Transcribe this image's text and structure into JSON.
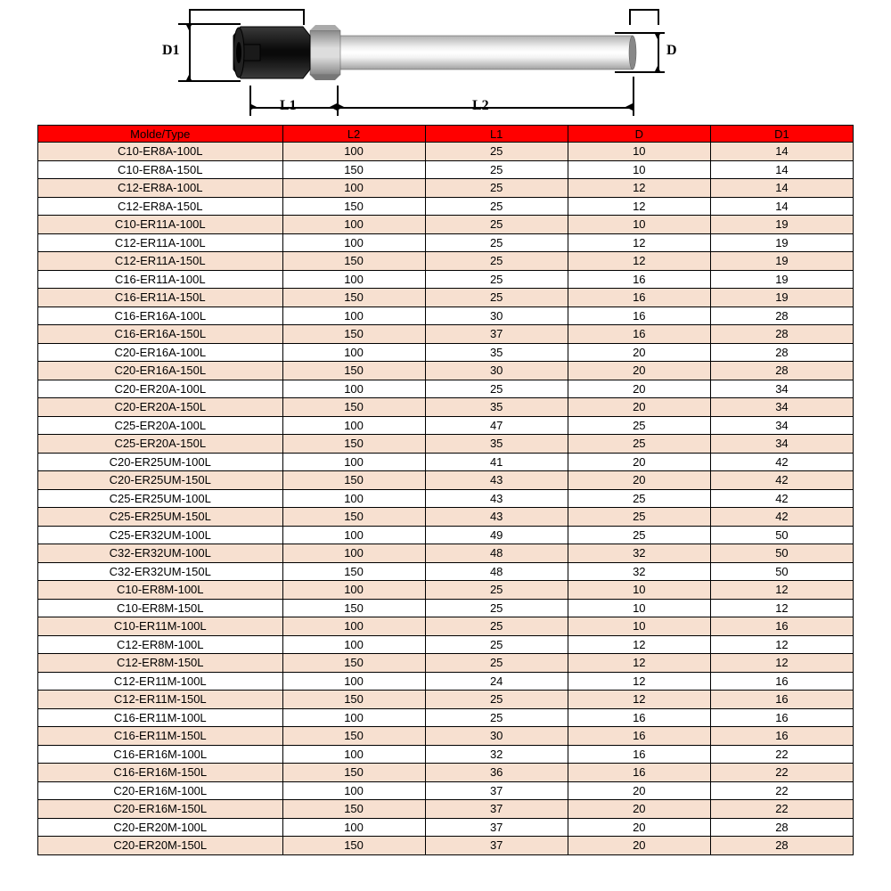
{
  "diagram": {
    "labels": {
      "d1": "D1",
      "d": "D",
      "l1": "L1",
      "l2": "L2"
    },
    "colors": {
      "nut": "#1a1a1a",
      "collar": "#c8c8c8",
      "shaft_light": "#e8e8e8",
      "shaft_dark": "#b0b0b0",
      "line": "#000000"
    }
  },
  "table": {
    "header_bg": "#ff0000",
    "row_alt_bg": "#f7e0d0",
    "row_bg": "#ffffff",
    "border": "#000000",
    "columns": [
      "Molde/Type",
      "L2",
      "L1",
      "D",
      "D1"
    ],
    "col_widths_pct": [
      30,
      17.5,
      17.5,
      17.5,
      17.5
    ],
    "font_size": 13,
    "rows": [
      [
        "C10-ER8A-100L",
        "100",
        "25",
        "10",
        "14"
      ],
      [
        "C10-ER8A-150L",
        "150",
        "25",
        "10",
        "14"
      ],
      [
        "C12-ER8A-100L",
        "100",
        "25",
        "12",
        "14"
      ],
      [
        "C12-ER8A-150L",
        "150",
        "25",
        "12",
        "14"
      ],
      [
        "C10-ER11A-100L",
        "100",
        "25",
        "10",
        "19"
      ],
      [
        "C12-ER11A-100L",
        "100",
        "25",
        "12",
        "19"
      ],
      [
        "C12-ER11A-150L",
        "150",
        "25",
        "12",
        "19"
      ],
      [
        "C16-ER11A-100L",
        "100",
        "25",
        "16",
        "19"
      ],
      [
        "C16-ER11A-150L",
        "150",
        "25",
        "16",
        "19"
      ],
      [
        "C16-ER16A-100L",
        "100",
        "30",
        "16",
        "28"
      ],
      [
        "C16-ER16A-150L",
        "150",
        "37",
        "16",
        "28"
      ],
      [
        "C20-ER16A-100L",
        "100",
        "35",
        "20",
        "28"
      ],
      [
        "C20-ER16A-150L",
        "150",
        "30",
        "20",
        "28"
      ],
      [
        "C20-ER20A-100L",
        "100",
        "25",
        "20",
        "34"
      ],
      [
        "C20-ER20A-150L",
        "150",
        "35",
        "20",
        "34"
      ],
      [
        "C25-ER20A-100L",
        "100",
        "47",
        "25",
        "34"
      ],
      [
        "C25-ER20A-150L",
        "150",
        "35",
        "25",
        "34"
      ],
      [
        "C20-ER25UM-100L",
        "100",
        "41",
        "20",
        "42"
      ],
      [
        "C20-ER25UM-150L",
        "150",
        "43",
        "20",
        "42"
      ],
      [
        "C25-ER25UM-100L",
        "100",
        "43",
        "25",
        "42"
      ],
      [
        "C25-ER25UM-150L",
        "150",
        "43",
        "25",
        "42"
      ],
      [
        "C25-ER32UM-100L",
        "100",
        "49",
        "25",
        "50"
      ],
      [
        "C32-ER32UM-100L",
        "100",
        "48",
        "32",
        "50"
      ],
      [
        "C32-ER32UM-150L",
        "150",
        "48",
        "32",
        "50"
      ],
      [
        "C10-ER8M-100L",
        "100",
        "25",
        "10",
        "12"
      ],
      [
        "C10-ER8M-150L",
        "150",
        "25",
        "10",
        "12"
      ],
      [
        "C10-ER11M-100L",
        "100",
        "25",
        "10",
        "16"
      ],
      [
        "C12-ER8M-100L",
        "100",
        "25",
        "12",
        "12"
      ],
      [
        "C12-ER8M-150L",
        "150",
        "25",
        "12",
        "12"
      ],
      [
        "C12-ER11M-100L",
        "100",
        "24",
        "12",
        "16"
      ],
      [
        "C12-ER11M-150L",
        "150",
        "25",
        "12",
        "16"
      ],
      [
        "C16-ER11M-100L",
        "100",
        "25",
        "16",
        "16"
      ],
      [
        "C16-ER11M-150L",
        "150",
        "30",
        "16",
        "16"
      ],
      [
        "C16-ER16M-100L",
        "100",
        "32",
        "16",
        "22"
      ],
      [
        "C16-ER16M-150L",
        "150",
        "36",
        "16",
        "22"
      ],
      [
        "C20-ER16M-100L",
        "100",
        "37",
        "20",
        "22"
      ],
      [
        "C20-ER16M-150L",
        "150",
        "37",
        "20",
        "22"
      ],
      [
        "C20-ER20M-100L",
        "100",
        "37",
        "20",
        "28"
      ],
      [
        "C20-ER20M-150L",
        "150",
        "37",
        "20",
        "28"
      ]
    ]
  }
}
